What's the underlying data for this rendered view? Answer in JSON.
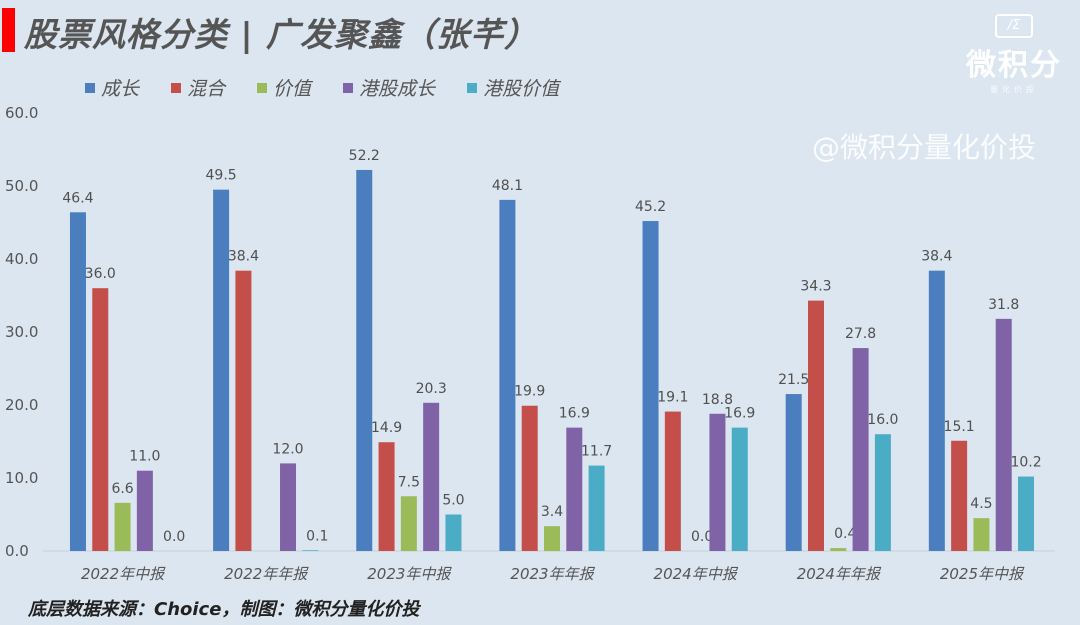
{
  "title": "股票风格分类 | 广发聚鑫（张芊）",
  "watermark": "@微积分量化价投",
  "logo": {
    "mark": "/Σ",
    "name": "微积分",
    "sub": "量化价投"
  },
  "source": "底层数据来源：Choice，制图：微积分量化价投",
  "chart_data": {
    "type": "bar",
    "title": "股票风格分类 | 广发聚鑫（张芊）",
    "categories": [
      "2022年中报",
      "2022年年报",
      "2023年中报",
      "2023年年报",
      "2024年中报",
      "2024年年报",
      "2025年中报"
    ],
    "series": [
      {
        "name": "成长",
        "color": "#4a7ebf",
        "values": [
          46.4,
          49.5,
          52.2,
          48.1,
          45.2,
          21.5,
          38.4
        ]
      },
      {
        "name": "混合",
        "color": "#c44e4a",
        "values": [
          36.0,
          38.4,
          14.9,
          19.9,
          19.1,
          34.3,
          15.1
        ]
      },
      {
        "name": "价值",
        "color": "#9bbb59",
        "values": [
          6.6,
          null,
          7.5,
          3.4,
          0.0,
          0.4,
          4.5
        ]
      },
      {
        "name": "港股成长",
        "color": "#8062a6",
        "values": [
          11.0,
          12.0,
          20.3,
          16.9,
          18.8,
          27.8,
          31.8
        ]
      },
      {
        "name": "港股价值",
        "color": "#4bacc6",
        "values": [
          0.0,
          0.1,
          5.0,
          11.7,
          16.9,
          16.0,
          10.2
        ]
      }
    ],
    "ylim": [
      0,
      60
    ],
    "yticks": [
      "0.0",
      "10.0",
      "20.0",
      "30.0",
      "40.0",
      "50.0",
      "60.0"
    ],
    "legend": "top",
    "grid": false
  }
}
